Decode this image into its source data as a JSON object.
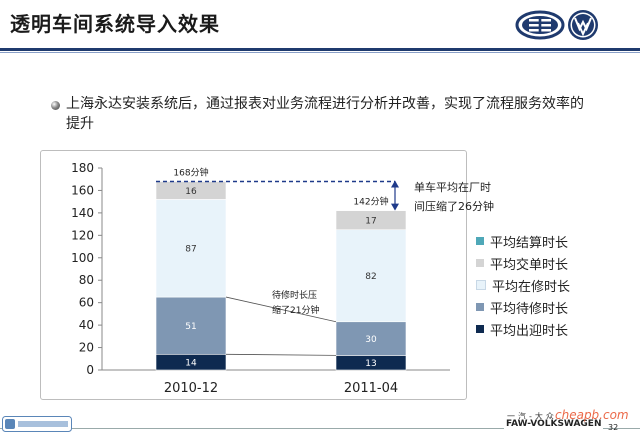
{
  "slide": {
    "title": "透明车间系统导入效果",
    "bullet": "上海永达安装系统后，通过报表对业务流程进行分析并改善，实现了流程服务效率的提升",
    "footer_brand": "FAW-VOLKSWAGEN",
    "footer_cn": "一汽-大众",
    "page_number": "32",
    "watermark": "cheapb.com"
  },
  "chart_data": {
    "type": "bar",
    "stacked": true,
    "categories": [
      "2010-12",
      "2011-04"
    ],
    "ylim": [
      0,
      180
    ],
    "yticks": [
      0,
      20,
      40,
      60,
      80,
      100,
      120,
      140,
      160,
      180
    ],
    "series": [
      {
        "name": "平均出迎时长",
        "color": "#0e2a50",
        "values": [
          14,
          13
        ]
      },
      {
        "name": "平均待修时长",
        "color": "#7f97b3",
        "values": [
          51,
          30
        ]
      },
      {
        "name": "平均在修时长",
        "color": "#e8f3fa",
        "values": [
          87,
          82
        ]
      },
      {
        "name": "平均交单时长",
        "color": "#d4d4d4",
        "values": [
          16,
          17
        ]
      },
      {
        "name": "平均结算时长",
        "color": "#4fa8b8",
        "values": [
          0,
          0
        ]
      }
    ],
    "totals": [
      {
        "value": 168,
        "label": "168分钟"
      },
      {
        "value": 142,
        "label": "142分钟"
      }
    ],
    "annotations": {
      "waiting_reduction": [
        "待修时长压",
        "缩了21分钟"
      ],
      "overall_reduction": [
        "单车平均在厂时",
        "间压缩了26分钟"
      ]
    },
    "legend_position": "right",
    "grid": false
  }
}
